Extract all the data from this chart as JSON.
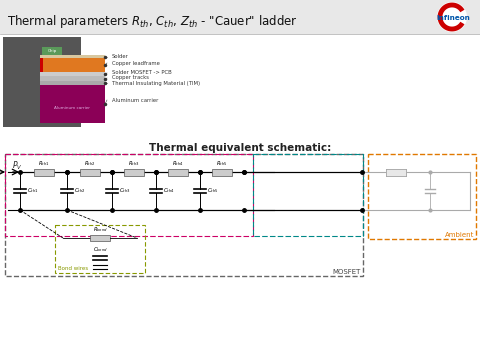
{
  "title": "Thermal parameters R_th, C_th, Z_th - \"Cauer\" ladder",
  "subtitle": "Thermal equivalent schematic:",
  "header_bg": "#e8e8e8",
  "white_bg": "#ffffff",
  "infineon_red": "#cc0000",
  "infineon_blue": "#0055aa",
  "orange_border": "#e07800",
  "pink_border": "#cc0066",
  "teal_border": "#008888",
  "green_border": "#889900",
  "dark_dash": "#555555",
  "layer_colors": {
    "copper_leadframe": "#e07820",
    "aluminum": "#8b0057",
    "green_chip": "#5a9a5a",
    "solder_thin": "#d8c8a0",
    "gray_light": "#cccccc",
    "gray_mid": "#bbbbbb",
    "gray_dark": "#aaaaaa"
  },
  "ambient_label": "Ambient",
  "mosfet_label": "MOSFET",
  "bondwires_label": "Bond wires",
  "pv_label": "P_V",
  "r_bond_label": "R_bond",
  "c_bond_label": "C_bond",
  "r_labels": [
    "R_th1",
    "R_th2",
    "R_th3",
    "R_th4",
    "R_th5"
  ],
  "c_labels": [
    "C_th1",
    "C_th2",
    "C_th3",
    "C_th4",
    "C_th5"
  ],
  "layer_labels": [
    "Solder",
    "Copper leadframe",
    "Solder MOSFET -> PCB",
    "Copper tracks",
    "Thermal Insulating Material (TIM)",
    "Aluminum carrier"
  ]
}
